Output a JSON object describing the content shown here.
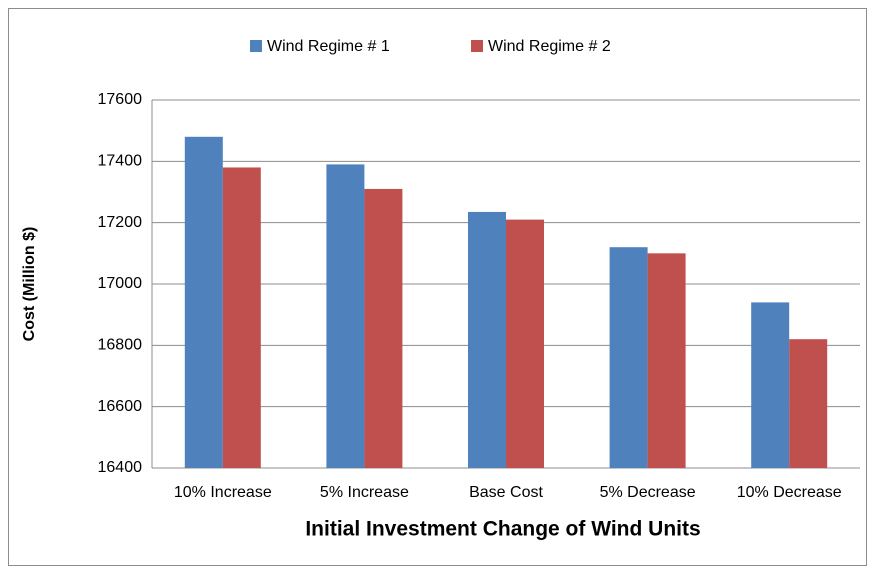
{
  "chart_data": {
    "type": "bar",
    "x_label": "Initial Investment Change of Wind Units",
    "y_label": "Cost  (Million $)",
    "categories": [
      "10% Increase",
      "5% Increase",
      "Base Cost",
      "5% Decrease",
      "10% Decrease"
    ],
    "series": [
      {
        "name": "Wind Regime # 1",
        "color": "#4f81bd",
        "values": [
          17480,
          17390,
          17235,
          17120,
          16940
        ]
      },
      {
        "name": "Wind Regime # 2",
        "color": "#c0504d",
        "values": [
          17380,
          17310,
          17210,
          17100,
          16820
        ]
      }
    ],
    "ylim": [
      16400,
      17600
    ],
    "yticks": [
      16400,
      16600,
      16800,
      17000,
      17200,
      17400,
      17600
    ],
    "grid": true,
    "legend": "top"
  }
}
